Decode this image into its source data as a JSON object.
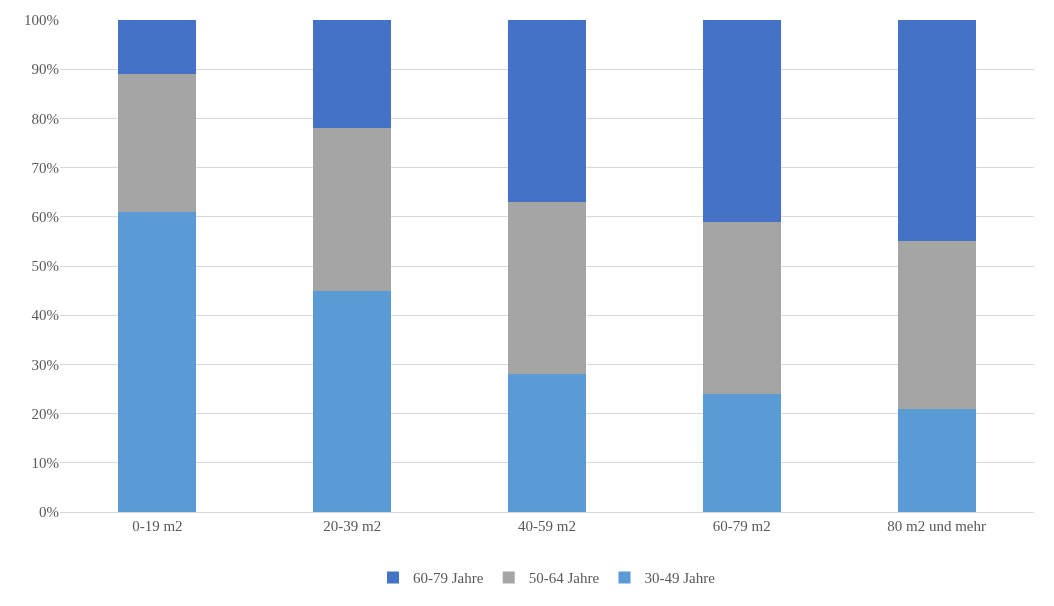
{
  "chart_data": {
    "type": "bar",
    "stacked": true,
    "categories": [
      "0-19 m2",
      "20-39 m2",
      "40-59 m2",
      "60-79 m2",
      "80 m2 und mehr"
    ],
    "series": [
      {
        "name": "30-49 Jahre",
        "color": "#5b9bd5",
        "values": [
          61,
          45,
          28,
          24,
          21
        ]
      },
      {
        "name": "50-64 Jahre",
        "color": "#a5a5a5",
        "values": [
          28,
          33,
          35,
          35,
          34
        ]
      },
      {
        "name": "60-79 Jahre",
        "color": "#4472c4",
        "values": [
          11,
          22,
          37,
          41,
          45
        ]
      }
    ],
    "ylim": [
      0,
      100
    ],
    "yticks": [
      {
        "value": 0,
        "label": "0%"
      },
      {
        "value": 10,
        "label": "10%"
      },
      {
        "value": 20,
        "label": "20%"
      },
      {
        "value": 30,
        "label": "30%"
      },
      {
        "value": 40,
        "label": "40%"
      },
      {
        "value": 50,
        "label": "50%"
      },
      {
        "value": 60,
        "label": "60%"
      },
      {
        "value": 70,
        "label": "70%"
      },
      {
        "value": 80,
        "label": "80%"
      },
      {
        "value": 90,
        "label": "90%"
      },
      {
        "value": 100,
        "label": "100%"
      }
    ],
    "grid": "y",
    "legend": "bottom"
  }
}
